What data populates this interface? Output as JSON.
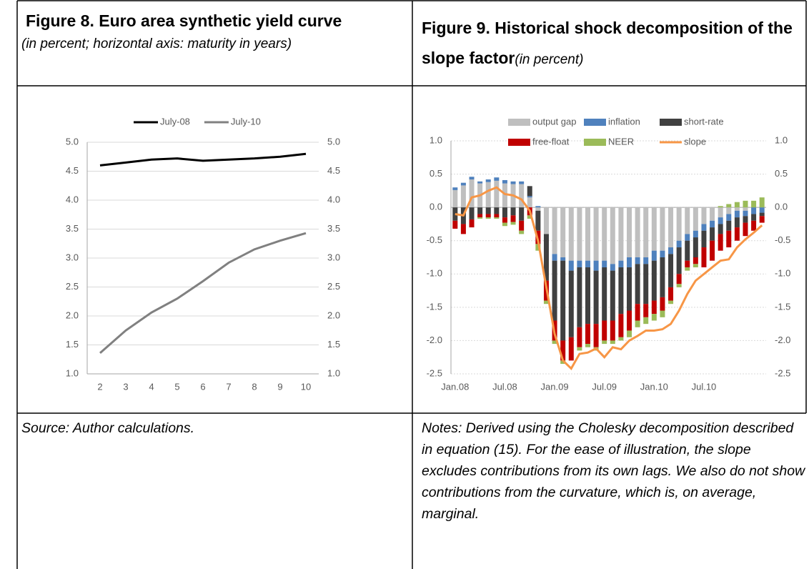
{
  "figures": [
    {
      "title": "Figure 8. Euro area synthetic yield curve",
      "subtitle": "(in percent; horizontal axis: maturity in years)",
      "note": "Source: Author calculations."
    },
    {
      "title": "Figure 9. Historical shock decomposition of the slope factor",
      "subtitle": "(in percent)",
      "note": "Notes: Derived using the Cholesky decomposition described in equation (15). For the ease of illustration, the slope excludes contributions from its own lags. We also do not show contributions from the curvature, which is, on average, marginal."
    }
  ],
  "chart_data": [
    {
      "type": "line",
      "x": [
        2,
        3,
        4,
        5,
        6,
        7,
        8,
        9,
        10
      ],
      "xlim": [
        1.5,
        10.5
      ],
      "xticks": [
        2,
        3,
        4,
        5,
        6,
        7,
        8,
        9,
        10
      ],
      "ylim": [
        1,
        5
      ],
      "yticks": [
        {
          "value": 1,
          "label": "1.0"
        },
        {
          "value": 1.5,
          "label": "1.5"
        },
        {
          "value": 2,
          "label": "2.0"
        },
        {
          "value": 2.5,
          "label": "2.5"
        },
        {
          "value": 3,
          "label": "3.0"
        },
        {
          "value": 3.5,
          "label": "3.5"
        },
        {
          "value": 4,
          "label": "4.0"
        },
        {
          "value": 4.5,
          "label": "4.5"
        },
        {
          "value": 5,
          "label": "5.0"
        }
      ],
      "y2lim": [
        1,
        5
      ],
      "y2ticks": [
        {
          "value": 1,
          "label": "1.0"
        },
        {
          "value": 1.5,
          "label": "1.5"
        },
        {
          "value": 2,
          "label": "2.0"
        },
        {
          "value": 2.5,
          "label": "2.5"
        },
        {
          "value": 3,
          "label": "3.0"
        },
        {
          "value": 3.5,
          "label": "3.5"
        },
        {
          "value": 4,
          "label": "4.0"
        },
        {
          "value": 4.5,
          "label": "4.5"
        },
        {
          "value": 5,
          "label": "5.0"
        }
      ],
      "grid": true,
      "series": [
        {
          "name": "July-08",
          "color": "#000000",
          "values": [
            4.6,
            4.65,
            4.7,
            4.72,
            4.68,
            4.7,
            4.72,
            4.75,
            4.8
          ]
        },
        {
          "name": "July-10",
          "color": "#808080",
          "values": [
            1.36,
            1.75,
            2.06,
            2.3,
            2.6,
            2.92,
            3.15,
            3.3,
            3.43
          ]
        }
      ]
    },
    {
      "type": "bar",
      "stacked": true,
      "categories": [
        "Jan.08",
        null,
        null,
        null,
        null,
        null,
        "Jul.08",
        null,
        null,
        null,
        null,
        null,
        "Jan.09",
        null,
        null,
        null,
        null,
        null,
        "Jul.09",
        null,
        null,
        null,
        null,
        null,
        "Jan.10",
        null,
        null,
        null,
        null,
        null,
        "Jul.10",
        null,
        null,
        null,
        null,
        null,
        null,
        null
      ],
      "ylim": [
        -2.5,
        1
      ],
      "yticks": [
        {
          "value": -2.5,
          "label": "-2.5"
        },
        {
          "value": -2,
          "label": "-2.0"
        },
        {
          "value": -1.5,
          "label": "-1.5"
        },
        {
          "value": -1,
          "label": "-1.0"
        },
        {
          "value": -0.5,
          "label": "-0.5"
        },
        {
          "value": 0,
          "label": "0.0"
        },
        {
          "value": 0.5,
          "label": "0.5"
        },
        {
          "value": 1,
          "label": "1.0"
        }
      ],
      "y2lim": [
        -2.5,
        1
      ],
      "y2ticks": [
        {
          "value": -2.5,
          "label": "-2.5"
        },
        {
          "value": -2,
          "label": "-2.0"
        },
        {
          "value": -1.5,
          "label": "-1.5"
        },
        {
          "value": -1,
          "label": "-1.0"
        },
        {
          "value": -0.5,
          "label": "-0.5"
        },
        {
          "value": 0,
          "label": "0.0"
        },
        {
          "value": 0.5,
          "label": "0.5"
        },
        {
          "value": 1,
          "label": "1.0"
        }
      ],
      "grid": true,
      "series": [
        {
          "name": "output gap",
          "color": "#bfbfbf",
          "values": [
            0.26,
            0.33,
            0.42,
            0.36,
            0.38,
            0.4,
            0.36,
            0.35,
            0.35,
            0.15,
            -0.05,
            -0.4,
            -0.7,
            -0.75,
            -0.8,
            -0.8,
            -0.8,
            -0.8,
            -0.8,
            -0.85,
            -0.8,
            -0.75,
            -0.75,
            -0.75,
            -0.65,
            -0.65,
            -0.6,
            -0.5,
            -0.4,
            -0.35,
            -0.25,
            -0.2,
            -0.15,
            -0.1,
            -0.05,
            -0.05,
            0,
            0
          ]
        },
        {
          "name": "inflation",
          "color": "#4f81bd",
          "values": [
            0.04,
            0.04,
            0.04,
            0.03,
            0.04,
            0.05,
            0.05,
            0.04,
            0.04,
            0.02,
            0.02,
            0,
            -0.1,
            -0.05,
            -0.15,
            -0.1,
            -0.1,
            -0.15,
            -0.1,
            -0.1,
            -0.1,
            -0.15,
            -0.1,
            -0.1,
            -0.15,
            -0.1,
            -0.1,
            -0.1,
            -0.1,
            -0.1,
            -0.1,
            -0.1,
            -0.1,
            -0.1,
            -0.1,
            -0.08,
            -0.1,
            -0.08
          ]
        },
        {
          "name": "short-rate",
          "color": "#404040",
          "values": [
            -0.2,
            -0.25,
            -0.18,
            -0.1,
            -0.1,
            -0.1,
            -0.15,
            -0.12,
            -0.2,
            0.15,
            -0.3,
            -0.7,
            -0.9,
            -1.2,
            -1,
            -0.9,
            -0.85,
            -0.8,
            -0.8,
            -0.75,
            -0.7,
            -0.65,
            -0.6,
            -0.6,
            -0.6,
            -0.6,
            -0.5,
            -0.4,
            -0.3,
            -0.3,
            -0.25,
            -0.2,
            -0.15,
            -0.15,
            -0.15,
            -0.1,
            -0.1,
            -0.05
          ]
        },
        {
          "name": "free-float",
          "color": "#c00000",
          "values": [
            -0.12,
            -0.15,
            -0.12,
            -0.05,
            -0.05,
            -0.05,
            -0.08,
            -0.1,
            -0.15,
            -0.12,
            -0.2,
            -0.3,
            -0.3,
            -0.3,
            -0.35,
            -0.3,
            -0.3,
            -0.35,
            -0.3,
            -0.3,
            -0.35,
            -0.3,
            -0.25,
            -0.2,
            -0.2,
            -0.2,
            -0.2,
            -0.15,
            -0.1,
            -0.1,
            -0.3,
            -0.3,
            -0.25,
            -0.25,
            -0.2,
            -0.2,
            -0.15,
            -0.1
          ]
        },
        {
          "name": "NEER",
          "color": "#9bbb59",
          "values": [
            0,
            0,
            0,
            -0.02,
            -0.02,
            -0.02,
            -0.05,
            -0.04,
            -0.05,
            -0.05,
            -0.1,
            -0.05,
            -0.05,
            -0.05,
            0,
            -0.05,
            -0.05,
            -0.05,
            -0.05,
            -0.05,
            -0.05,
            -0.1,
            -0.1,
            -0.1,
            -0.1,
            -0.1,
            -0.05,
            -0.05,
            -0.05,
            -0.05,
            0,
            0,
            0.02,
            0.05,
            0.08,
            0.1,
            0.1,
            0.15
          ]
        },
        {
          "name": "slope",
          "color": "#f79646",
          "type": "line",
          "values": [
            -0.1,
            -0.12,
            0.15,
            0.18,
            0.25,
            0.3,
            0.2,
            0.18,
            0.12,
            -0.05,
            -0.5,
            -1.2,
            -1.9,
            -2.3,
            -2.42,
            -2.2,
            -2.18,
            -2.12,
            -2.25,
            -2.1,
            -2.13,
            -2,
            -1.93,
            -1.85,
            -1.85,
            -1.83,
            -1.75,
            -1.55,
            -1.3,
            -1.1,
            -1,
            -0.9,
            -0.8,
            -0.78,
            -0.6,
            -0.48,
            -0.38,
            -0.27
          ]
        }
      ]
    }
  ]
}
